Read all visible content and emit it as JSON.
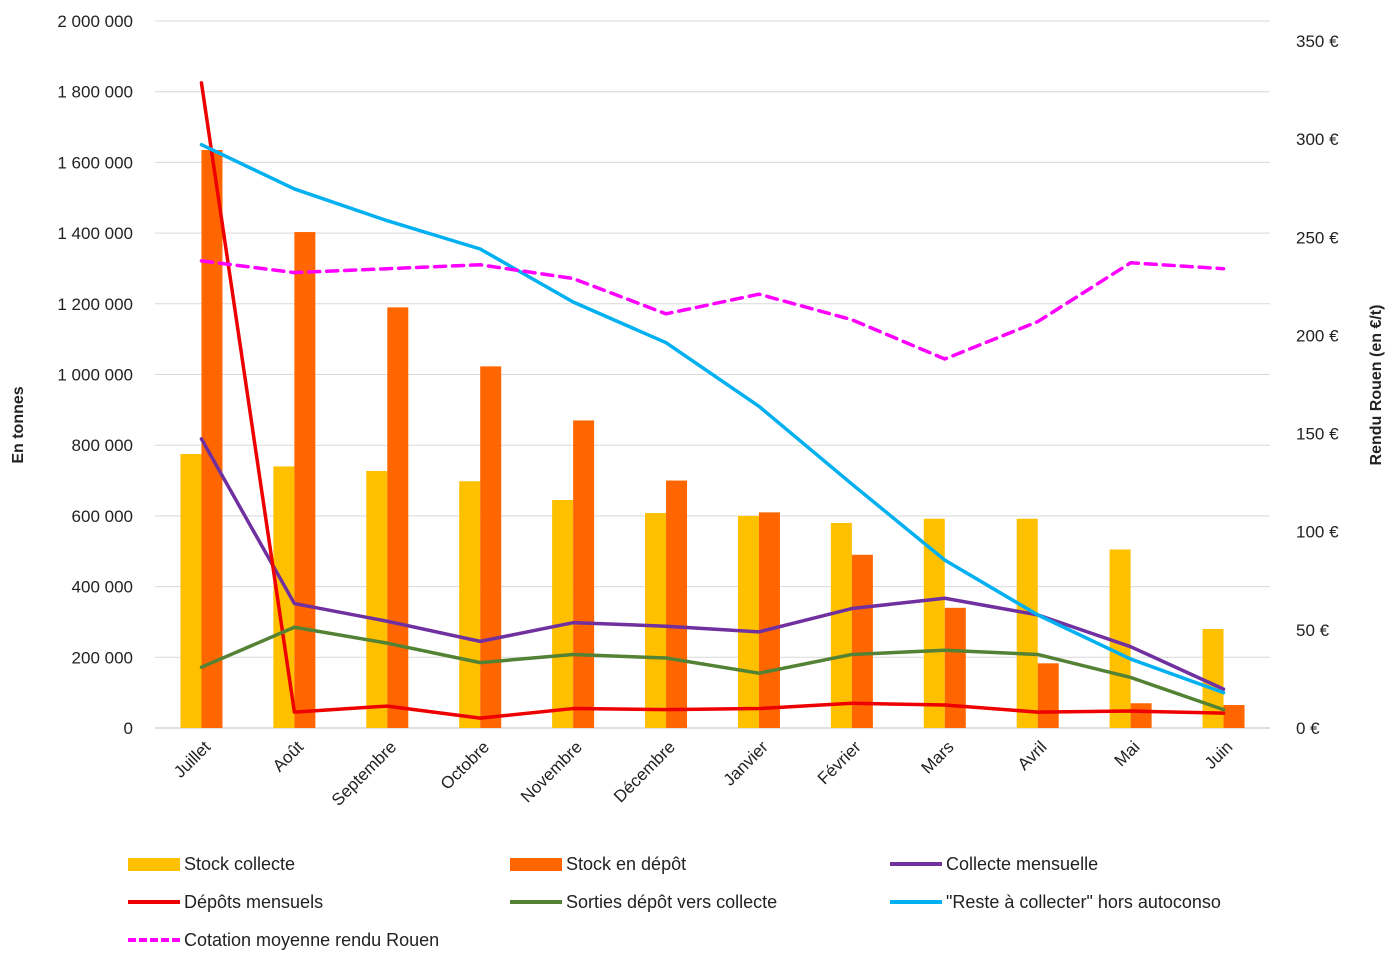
{
  "chart_data": {
    "type": "bar",
    "categories": [
      "Juillet",
      "Août",
      "Septembre",
      "Octobre",
      "Novembre",
      "Décembre",
      "Janvier",
      "Février",
      "Mars",
      "Avril",
      "Mai",
      "Juin"
    ],
    "ylabel": "En tonnes",
    "y2label": "Rendu Rouen (en €/t)",
    "ylim": [
      0,
      2000000
    ],
    "y2lim": [
      0,
      350
    ],
    "yticks": [
      "0",
      "200 000",
      "400 000",
      "600 000",
      "800 000",
      "1 000 000",
      "1 200 000",
      "1 400 000",
      "1 600 000",
      "1 800 000",
      "2 000 000"
    ],
    "y2ticks": [
      "0 €",
      "50 €",
      "100 €",
      "150 €",
      "200 €",
      "250 €",
      "300 €",
      "350 €"
    ],
    "grid": true,
    "legend_position": "bottom",
    "series": [
      {
        "name": "Stock collecte",
        "kind": "bar",
        "axis": "left",
        "color": "#FFC000",
        "values": [
          775000,
          740000,
          727000,
          698000,
          645000,
          608000,
          600000,
          580000,
          592000,
          592000,
          505000,
          280000
        ]
      },
      {
        "name": "Stock en dépôt",
        "kind": "bar",
        "axis": "left",
        "color": "#FF6600",
        "values": [
          1635000,
          1403000,
          1190000,
          1023000,
          870000,
          700000,
          610000,
          490000,
          340000,
          183000,
          70000,
          65000
        ]
      },
      {
        "name": "Collecte mensuelle",
        "kind": "line",
        "axis": "left",
        "color": "#7030A0",
        "values": [
          818000,
          352000,
          302000,
          245000,
          298000,
          288000,
          272000,
          338000,
          367000,
          320000,
          230000,
          110000
        ]
      },
      {
        "name": "Dépôts mensuels",
        "kind": "line",
        "axis": "left",
        "color": "#EE0000",
        "values": [
          1825000,
          45000,
          62000,
          28000,
          55000,
          52000,
          55000,
          70000,
          65000,
          45000,
          48000,
          42000
        ]
      },
      {
        "name": "Sorties dépôt vers collecte",
        "kind": "line",
        "axis": "left",
        "color": "#548235",
        "values": [
          172000,
          285000,
          240000,
          185000,
          208000,
          198000,
          155000,
          208000,
          220000,
          208000,
          143000,
          52000
        ]
      },
      {
        "name": "\"Reste à collecter\" hors autoconso",
        "kind": "line",
        "axis": "left",
        "color": "#00B0F0",
        "values": [
          1650000,
          1525000,
          1435000,
          1355000,
          1205000,
          1090000,
          910000,
          690000,
          475000,
          320000,
          195000,
          100000
        ]
      },
      {
        "name": "Cotation moyenne rendu Rouen",
        "kind": "dashed-line",
        "axis": "right",
        "color": "#FF00FF",
        "values": [
          238,
          232,
          234,
          236,
          229,
          211,
          221,
          208,
          188,
          207,
          237,
          234
        ]
      }
    ]
  }
}
